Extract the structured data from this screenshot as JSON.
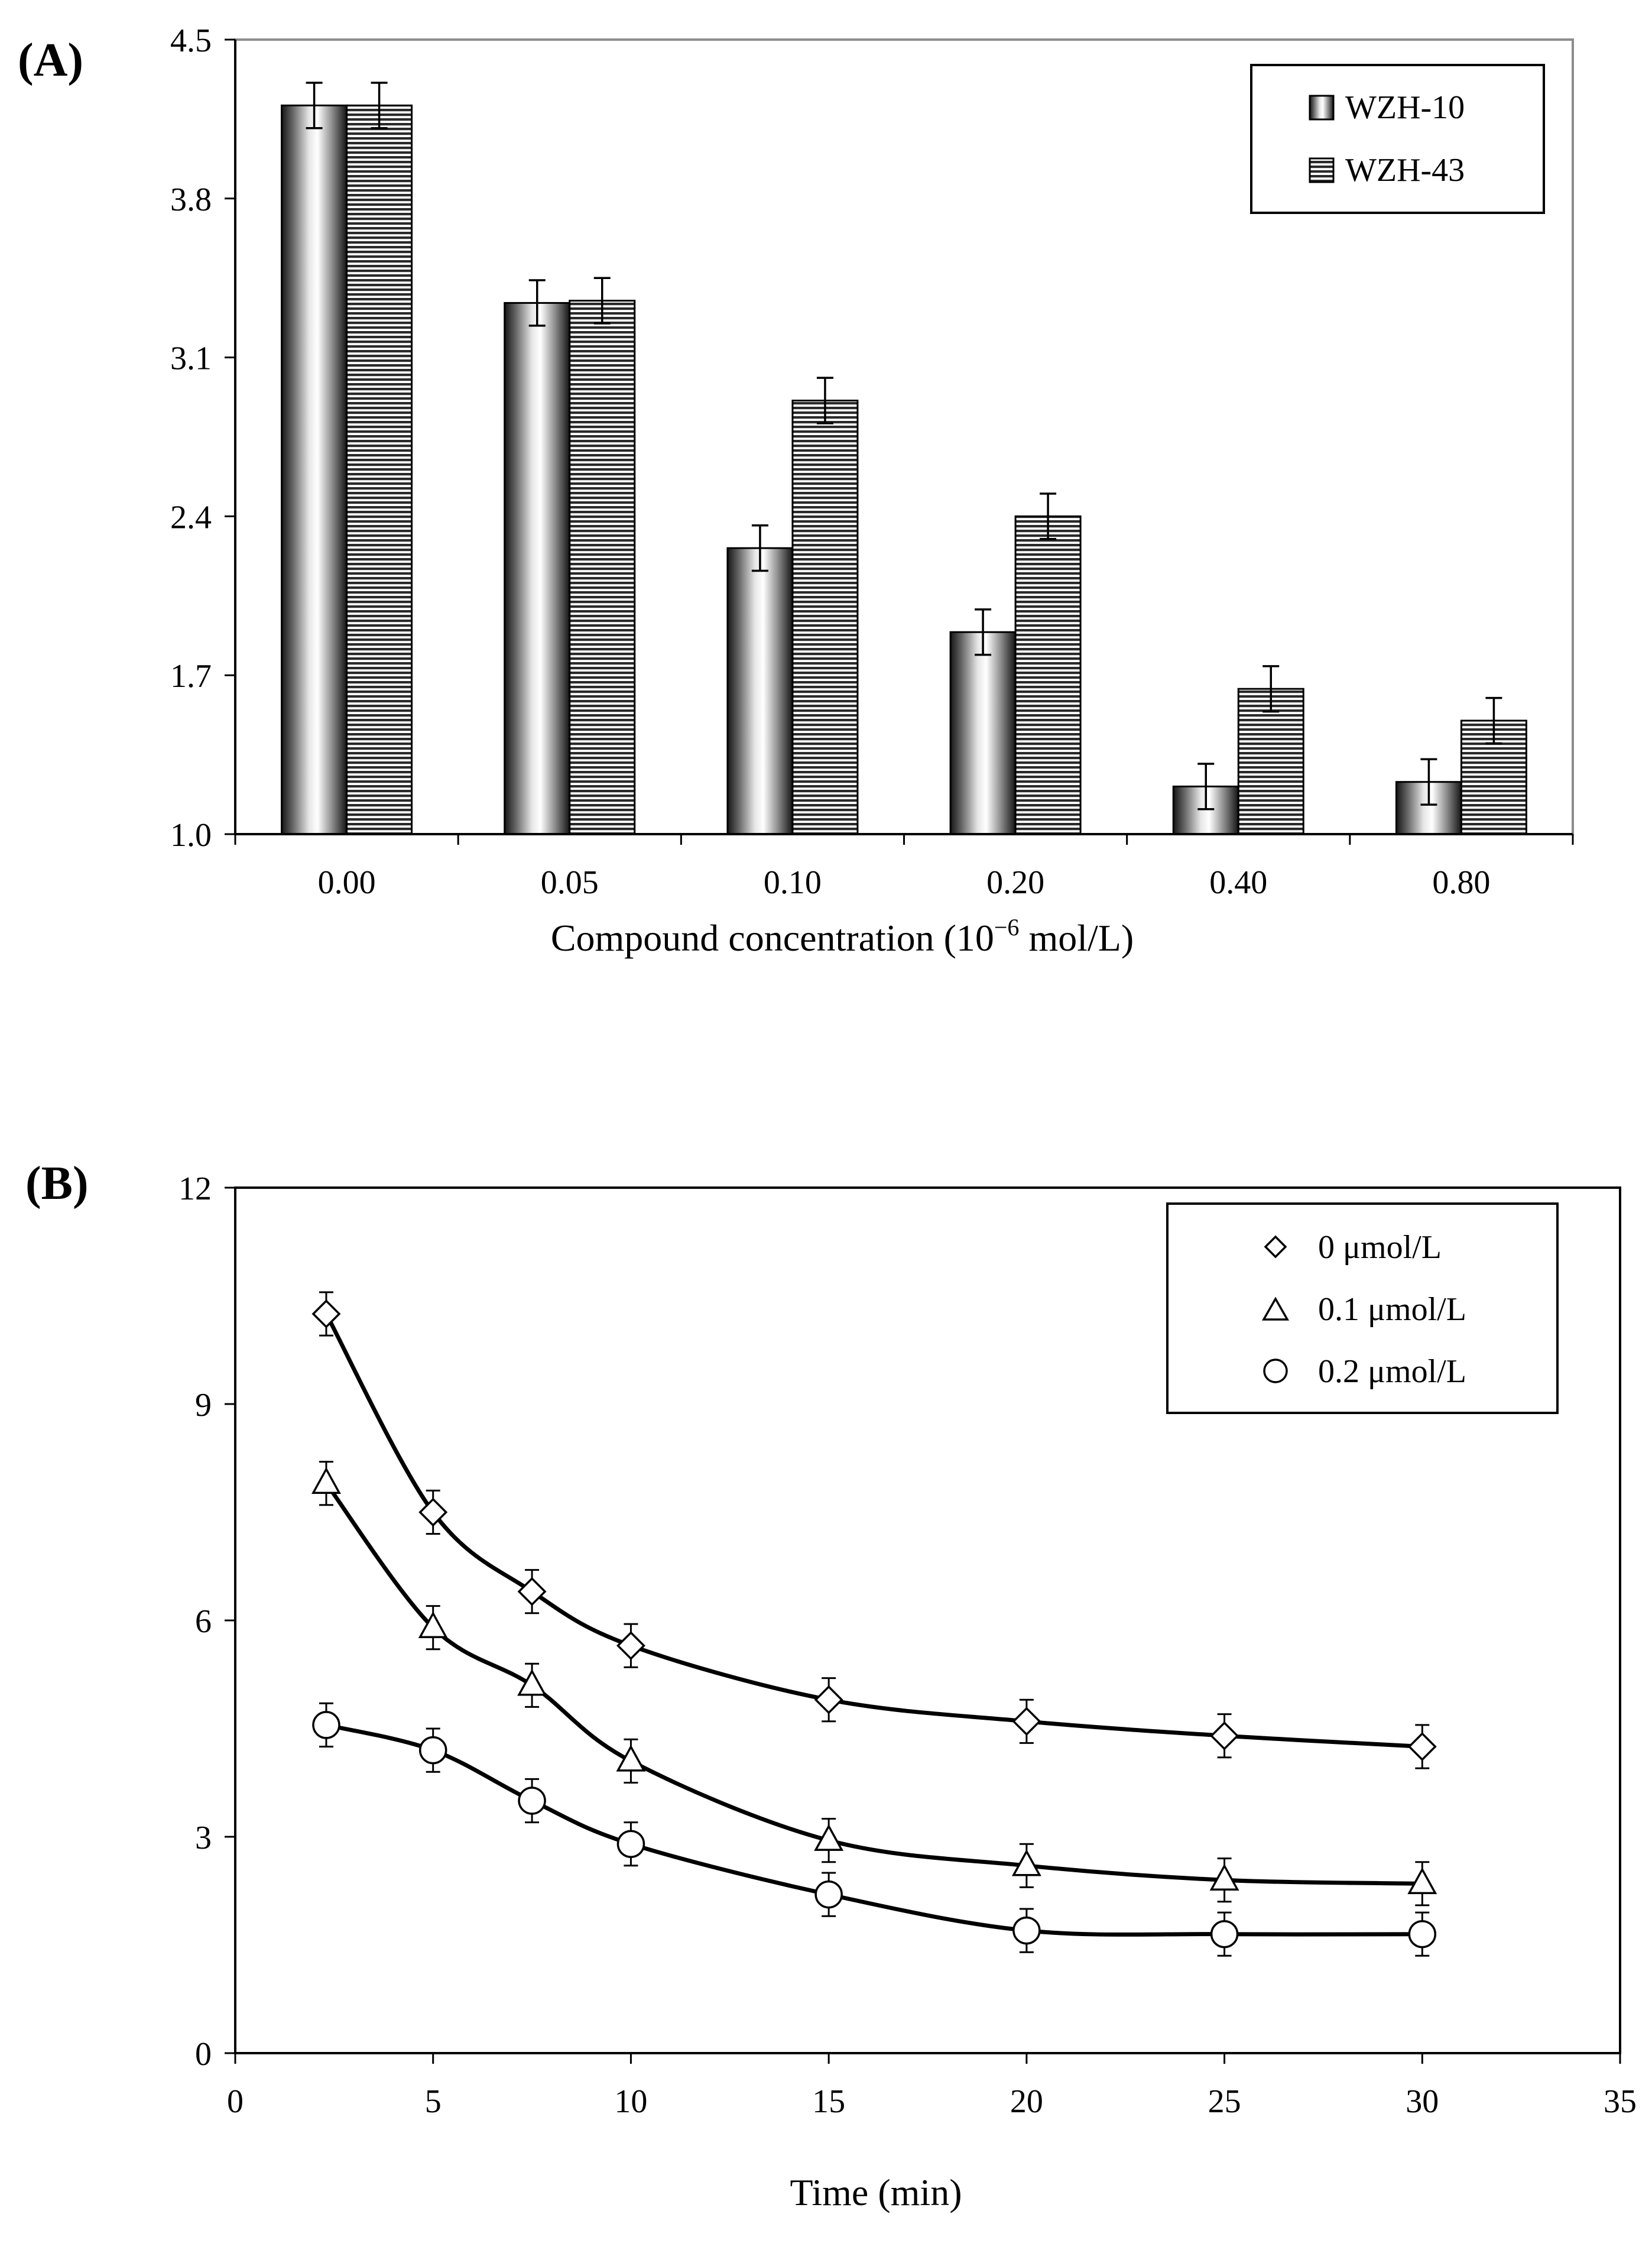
{
  "chart_data": [
    {
      "panel_label": "(A)",
      "type": "bar",
      "xlabel_main": "Compound concentration (10",
      "xlabel_exp": "−6",
      "xlabel_unit": " mol/L)",
      "ylabel": "",
      "ylim": [
        1.0,
        4.5
      ],
      "yticks": [
        "1.0",
        "1.7",
        "2.4",
        "3.1",
        "3.8",
        "4.5"
      ],
      "categories": [
        "0.00",
        "0.05",
        "0.10",
        "0.20",
        "0.40",
        "0.80"
      ],
      "legend_position": "top-right",
      "series": [
        {
          "name": "WZH-10",
          "pattern": "vertical-gradient",
          "values": [
            4.21,
            3.34,
            2.26,
            1.89,
            1.21,
            1.23
          ],
          "errors": [
            0.1,
            0.1,
            0.1,
            0.1,
            0.1,
            0.1
          ]
        },
        {
          "name": "WZH-43",
          "pattern": "horizontal-stripes",
          "values": [
            4.21,
            3.35,
            2.91,
            2.4,
            1.64,
            1.5
          ],
          "errors": [
            0.1,
            0.1,
            0.1,
            0.1,
            0.1,
            0.1
          ]
        }
      ]
    },
    {
      "panel_label": "(B)",
      "type": "line",
      "xlabel": "Time (min)",
      "ylabel": "",
      "xlim": [
        0,
        35
      ],
      "ylim": [
        0,
        12
      ],
      "xticks": [
        "0",
        "5",
        "10",
        "15",
        "20",
        "25",
        "30",
        "35"
      ],
      "yticks": [
        "0",
        "3",
        "6",
        "9",
        "12"
      ],
      "legend_position": "top-right",
      "x": [
        2.3,
        5,
        7.5,
        10,
        15,
        20,
        25,
        30
      ],
      "series": [
        {
          "name": "0 μmol/L",
          "marker": "diamond",
          "values": [
            10.25,
            7.5,
            6.4,
            5.65,
            4.9,
            4.6,
            4.4,
            4.25
          ],
          "errors": [
            0.3,
            0.3,
            0.3,
            0.3,
            0.3,
            0.3,
            0.3,
            0.3
          ]
        },
        {
          "name": "0.1 μmol/L",
          "marker": "triangle",
          "values": [
            7.9,
            5.9,
            5.1,
            4.05,
            2.95,
            2.6,
            2.4,
            2.35
          ],
          "errors": [
            0.3,
            0.3,
            0.3,
            0.3,
            0.3,
            0.3,
            0.3,
            0.3
          ]
        },
        {
          "name": "0.2 μmol/L",
          "marker": "circle",
          "values": [
            4.55,
            4.2,
            3.5,
            2.9,
            2.2,
            1.7,
            1.65,
            1.65
          ],
          "errors": [
            0.3,
            0.3,
            0.3,
            0.3,
            0.3,
            0.3,
            0.3,
            0.3
          ]
        }
      ]
    }
  ]
}
